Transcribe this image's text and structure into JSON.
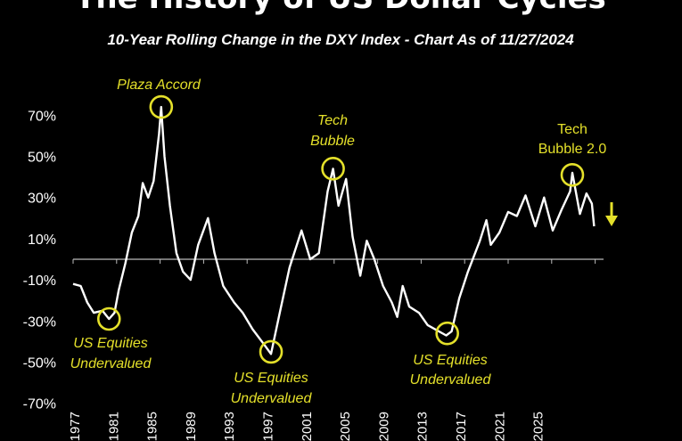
{
  "chart_data": {
    "type": "line",
    "title": "The History of US Dollar Cycles",
    "subtitle": "10-Year Rolling Change in the DXY Index - Chart As of 11/27/2024",
    "xlabel": "",
    "ylabel": "",
    "xlim": [
      1977,
      2025
    ],
    "ylim": [
      -70,
      70
    ],
    "grid": false,
    "y_ticks": [
      "70%",
      "50%",
      "30%",
      "10%",
      "-10%",
      "-30%",
      "-50%",
      "-70%"
    ],
    "y_tick_values": [
      70,
      50,
      30,
      10,
      -10,
      -30,
      -50,
      -70
    ],
    "x_ticks": [
      "1977",
      "1981",
      "1985",
      "1989",
      "1993",
      "1997",
      "2001",
      "2005",
      "2009",
      "2013",
      "2017",
      "2021",
      "2025"
    ],
    "colors": {
      "line": "#ffffff",
      "annotation": "#e4e02a",
      "background": "#000000",
      "axis": "#bbbbbb"
    },
    "series": [
      {
        "x": [
          1977.0,
          1977.7,
          1978.3,
          1978.9,
          1979.7,
          1980.3,
          1980.8,
          1981.2,
          1981.8,
          1982.4,
          1983.0,
          1983.4,
          1983.9,
          1984.4,
          1984.9,
          1985.1,
          1985.4,
          1985.9,
          1986.5,
          1987.1,
          1987.8,
          1988.5,
          1989.4,
          1990.0,
          1990.8,
          1991.8,
          1992.6,
          1993.5,
          1994.5,
          1995.2,
          1996.0,
          1996.9,
          1998.0,
          1998.8,
          1999.6,
          2000.4,
          2000.9,
          2001.4,
          2002.1,
          2002.7,
          2003.4,
          2004.0,
          2004.7,
          2005.5,
          2006.3,
          2006.8,
          2007.3,
          2007.9,
          2008.8,
          2009.6,
          2011.3,
          2011.8,
          2012.5,
          2013.3,
          2014.4,
          2015.0,
          2015.4,
          2016.2,
          2017.0,
          2017.8,
          2018.6,
          2019.5,
          2020.3,
          2021.1,
          2021.9,
          2022.7,
          2022.9,
          2023.6,
          2024.2,
          2024.7,
          2024.9
        ],
        "y": [
          -12,
          -13,
          -21,
          -26,
          -25,
          -29,
          -26,
          -15,
          -2,
          13,
          21,
          37,
          30,
          38,
          61,
          74,
          50,
          26,
          3,
          -6,
          -10,
          7,
          20,
          3,
          -13,
          -21,
          -26,
          -34,
          -41,
          -46,
          -26,
          -4,
          14,
          0,
          3,
          33,
          44,
          26,
          39,
          11,
          -8,
          9,
          0,
          -13,
          -21,
          -28,
          -13,
          -23,
          -26,
          -32,
          -37,
          -35,
          -19,
          -6,
          9,
          19,
          7,
          13,
          23,
          21,
          31,
          16,
          30,
          14,
          24,
          33,
          42,
          22,
          32,
          27,
          16
        ]
      }
    ],
    "annotations": [
      {
        "lines": [
          "US Equities",
          "Undervalued"
        ],
        "x": 1980.3,
        "y": -29
      },
      {
        "lines": [
          "Plaza Accord"
        ],
        "x": 1985.1,
        "y": 74
      },
      {
        "lines": [
          "US Equities",
          "Undervalued"
        ],
        "x": 1995.2,
        "y": -45
      },
      {
        "lines": [
          "Tech",
          "Bubble"
        ],
        "x": 2000.9,
        "y": 44
      },
      {
        "lines": [
          "US Equities",
          "Undervalued"
        ],
        "x": 2011.4,
        "y": -36
      },
      {
        "lines": [
          "Tech",
          "Bubble 2.0"
        ],
        "x": 2022.9,
        "y": 41
      }
    ],
    "arrow": {
      "direction": "down",
      "icon": "down-arrow-icon"
    }
  }
}
